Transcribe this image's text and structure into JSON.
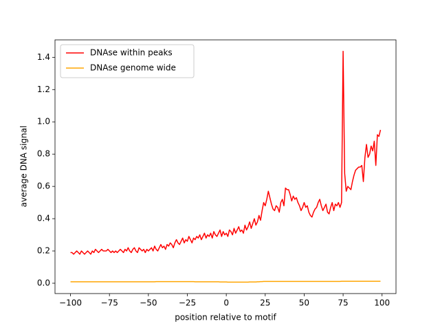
{
  "chart_data": {
    "type": "line",
    "xlabel": "position relative to motif",
    "ylabel": "average DNA signal",
    "legend": "upper left",
    "x": [
      -100,
      -99,
      -98,
      -97,
      -96,
      -95,
      -94,
      -93,
      -92,
      -91,
      -90,
      -89,
      -88,
      -87,
      -86,
      -85,
      -84,
      -83,
      -82,
      -81,
      -80,
      -79,
      -78,
      -77,
      -76,
      -75,
      -74,
      -73,
      -72,
      -71,
      -70,
      -69,
      -68,
      -67,
      -66,
      -65,
      -64,
      -63,
      -62,
      -61,
      -60,
      -59,
      -58,
      -57,
      -56,
      -55,
      -54,
      -53,
      -52,
      -51,
      -50,
      -49,
      -48,
      -47,
      -46,
      -45,
      -44,
      -43,
      -42,
      -41,
      -40,
      -39,
      -38,
      -37,
      -36,
      -35,
      -34,
      -33,
      -32,
      -31,
      -30,
      -29,
      -28,
      -27,
      -26,
      -25,
      -24,
      -23,
      -22,
      -21,
      -20,
      -19,
      -18,
      -17,
      -16,
      -15,
      -14,
      -13,
      -12,
      -11,
      -10,
      -9,
      -8,
      -7,
      -6,
      -5,
      -4,
      -3,
      -2,
      -1,
      0,
      1,
      2,
      3,
      4,
      5,
      6,
      7,
      8,
      9,
      10,
      11,
      12,
      13,
      14,
      15,
      16,
      17,
      18,
      19,
      20,
      21,
      22,
      23,
      24,
      25,
      26,
      27,
      28,
      29,
      30,
      31,
      32,
      33,
      34,
      35,
      36,
      37,
      38,
      39,
      40,
      41,
      42,
      43,
      44,
      45,
      46,
      47,
      48,
      49,
      50,
      51,
      52,
      53,
      54,
      55,
      56,
      57,
      58,
      59,
      60,
      61,
      62,
      63,
      64,
      65,
      66,
      67,
      68,
      69,
      70,
      71,
      72,
      73,
      74,
      75,
      76,
      77,
      78,
      79,
      80,
      81,
      82,
      83,
      84,
      85,
      86,
      87,
      88,
      89,
      90,
      91,
      92,
      93,
      94,
      95,
      96,
      97,
      98,
      99
    ],
    "series": [
      {
        "name": "DNAse within peaks",
        "color": "#ff0000",
        "values": [
          0.19,
          0.19,
          0.18,
          0.19,
          0.2,
          0.19,
          0.18,
          0.2,
          0.19,
          0.18,
          0.19,
          0.2,
          0.19,
          0.18,
          0.2,
          0.19,
          0.21,
          0.2,
          0.19,
          0.2,
          0.21,
          0.2,
          0.2,
          0.2,
          0.21,
          0.2,
          0.19,
          0.2,
          0.19,
          0.2,
          0.19,
          0.2,
          0.21,
          0.2,
          0.19,
          0.21,
          0.2,
          0.22,
          0.2,
          0.19,
          0.21,
          0.22,
          0.2,
          0.19,
          0.22,
          0.21,
          0.2,
          0.21,
          0.19,
          0.21,
          0.2,
          0.21,
          0.22,
          0.2,
          0.23,
          0.21,
          0.2,
          0.22,
          0.24,
          0.22,
          0.23,
          0.21,
          0.24,
          0.23,
          0.25,
          0.24,
          0.22,
          0.25,
          0.27,
          0.25,
          0.24,
          0.26,
          0.28,
          0.25,
          0.27,
          0.26,
          0.29,
          0.27,
          0.25,
          0.28,
          0.27,
          0.29,
          0.28,
          0.3,
          0.27,
          0.29,
          0.31,
          0.28,
          0.3,
          0.29,
          0.31,
          0.28,
          0.32,
          0.3,
          0.29,
          0.31,
          0.33,
          0.29,
          0.32,
          0.3,
          0.31,
          0.29,
          0.33,
          0.32,
          0.3,
          0.34,
          0.31,
          0.33,
          0.35,
          0.32,
          0.33,
          0.31,
          0.36,
          0.33,
          0.35,
          0.38,
          0.34,
          0.37,
          0.4,
          0.36,
          0.38,
          0.42,
          0.39,
          0.45,
          0.5,
          0.48,
          0.52,
          0.57,
          0.53,
          0.49,
          0.46,
          0.45,
          0.48,
          0.47,
          0.44,
          0.5,
          0.52,
          0.48,
          0.59,
          0.58,
          0.58,
          0.55,
          0.51,
          0.54,
          0.52,
          0.53,
          0.5,
          0.48,
          0.45,
          0.47,
          0.5,
          0.47,
          0.48,
          0.44,
          0.42,
          0.41,
          0.44,
          0.46,
          0.47,
          0.5,
          0.52,
          0.48,
          0.45,
          0.47,
          0.49,
          0.44,
          0.43,
          0.47,
          0.5,
          0.45,
          0.49,
          0.48,
          0.5,
          0.47,
          0.5,
          1.437,
          0.68,
          0.57,
          0.6,
          0.59,
          0.58,
          0.63,
          0.67,
          0.7,
          0.71,
          0.72,
          0.72,
          0.73,
          0.63,
          0.78,
          0.86,
          0.78,
          0.8,
          0.85,
          0.82,
          0.88,
          0.73,
          0.92,
          0.91,
          0.95
        ]
      },
      {
        "name": "DNAse genome wide",
        "color": "#ffa500",
        "values": [
          0.009,
          0.009,
          0.009,
          0.009,
          0.009,
          0.009,
          0.009,
          0.009,
          0.009,
          0.009,
          0.009,
          0.009,
          0.009,
          0.009,
          0.009,
          0.009,
          0.009,
          0.009,
          0.009,
          0.009,
          0.009,
          0.009,
          0.009,
          0.009,
          0.009,
          0.009,
          0.009,
          0.009,
          0.009,
          0.009,
          0.009,
          0.009,
          0.009,
          0.009,
          0.009,
          0.009,
          0.009,
          0.009,
          0.009,
          0.009,
          0.009,
          0.009,
          0.009,
          0.009,
          0.009,
          0.009,
          0.009,
          0.009,
          0.009,
          0.009,
          0.009,
          0.009,
          0.009,
          0.009,
          0.009,
          0.01,
          0.01,
          0.01,
          0.01,
          0.01,
          0.01,
          0.01,
          0.01,
          0.01,
          0.01,
          0.01,
          0.01,
          0.01,
          0.01,
          0.01,
          0.01,
          0.01,
          0.01,
          0.01,
          0.01,
          0.01,
          0.01,
          0.01,
          0.01,
          0.01,
          0.009,
          0.009,
          0.009,
          0.009,
          0.009,
          0.009,
          0.009,
          0.009,
          0.009,
          0.009,
          0.009,
          0.009,
          0.009,
          0.009,
          0.009,
          0.009,
          0.008,
          0.008,
          0.008,
          0.008,
          0.008,
          0.007,
          0.007,
          0.007,
          0.007,
          0.007,
          0.007,
          0.007,
          0.007,
          0.007,
          0.007,
          0.007,
          0.007,
          0.007,
          0.007,
          0.008,
          0.008,
          0.008,
          0.008,
          0.008,
          0.009,
          0.009,
          0.01,
          0.01,
          0.011,
          0.011,
          0.011,
          0.011,
          0.011,
          0.011,
          0.011,
          0.011,
          0.011,
          0.011,
          0.011,
          0.011,
          0.011,
          0.011,
          0.011,
          0.011,
          0.011,
          0.011,
          0.011,
          0.011,
          0.011,
          0.011,
          0.011,
          0.011,
          0.011,
          0.011,
          0.011,
          0.011,
          0.011,
          0.011,
          0.011,
          0.011,
          0.011,
          0.011,
          0.011,
          0.011,
          0.011,
          0.011,
          0.011,
          0.011,
          0.011,
          0.011,
          0.011,
          0.011,
          0.011,
          0.011,
          0.011,
          0.011,
          0.011,
          0.011,
          0.012,
          0.012,
          0.012,
          0.012,
          0.012,
          0.012,
          0.012,
          0.012,
          0.012,
          0.012,
          0.012,
          0.012,
          0.012,
          0.012,
          0.012,
          0.012,
          0.012,
          0.012,
          0.012,
          0.012,
          0.012,
          0.012,
          0.012,
          0.012,
          0.012,
          0.012
        ]
      }
    ],
    "xlim": [
      -109.95,
      108.95
    ],
    "ylim": [
      -0.064,
      1.508
    ],
    "xticks": [
      {
        "value": -100,
        "label": "−100"
      },
      {
        "value": -75,
        "label": "−75"
      },
      {
        "value": -50,
        "label": "−50"
      },
      {
        "value": -25,
        "label": "−25"
      },
      0,
      25,
      50,
      75,
      100
    ],
    "yticks": [
      {
        "value": 0,
        "label": "0.0"
      },
      {
        "value": 0.2,
        "label": "0.2"
      },
      {
        "value": 0.4,
        "label": "0.4"
      },
      {
        "value": 0.6,
        "label": "0.6"
      },
      {
        "value": 0.8,
        "label": "0.8"
      },
      {
        "value": 1,
        "label": "1.0"
      },
      {
        "value": 1.2,
        "label": "1.2"
      },
      {
        "value": 1.4,
        "label": "1.4"
      }
    ]
  }
}
